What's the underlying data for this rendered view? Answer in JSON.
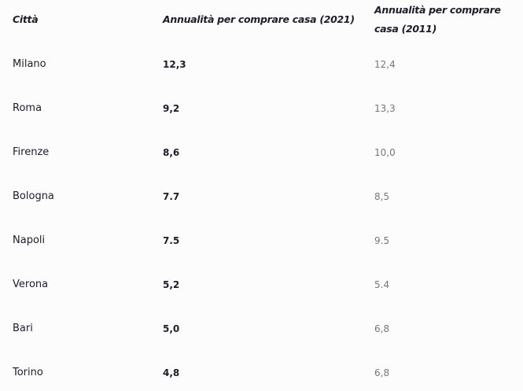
{
  "table": {
    "header": [
      "Città",
      "Annualità per comprare casa (2021)",
      "Annualità per comprare casa (2011)"
    ],
    "rows": [
      [
        "Milano",
        "12,3",
        "12,4"
      ],
      [
        "Roma",
        "9,2",
        "13,3"
      ],
      [
        "Firenze",
        "8,6",
        "10,0"
      ],
      [
        "Bologna",
        "7.7",
        "8,5"
      ],
      [
        "Napoli",
        "7.5",
        "9.5"
      ],
      [
        "Verona",
        "5,2",
        "5.4"
      ],
      [
        "Bari",
        "5,0",
        "6,8"
      ],
      [
        "Torino",
        "4,8",
        "6,8"
      ]
    ]
  }
}
